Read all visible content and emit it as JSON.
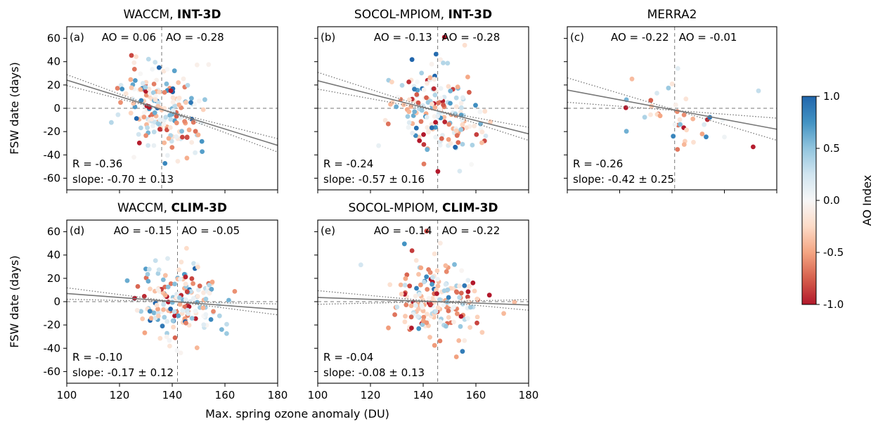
{
  "figure": {
    "shared_xlabel": "Max. spring ozone anomaly (DU)",
    "colorbar": {
      "label": "AO Index",
      "ticks": [
        "1.0",
        "0.5",
        "0.0",
        "-0.5",
        "-1.0"
      ],
      "tick_values": [
        1.0,
        0.5,
        0.0,
        -0.5,
        -1.0
      ],
      "colormap": [
        "#b2182b",
        "#d6604d",
        "#f4a582",
        "#fddbc7",
        "#f7f7f7",
        "#d1e5f0",
        "#92c5de",
        "#4393c3",
        "#2166ac"
      ],
      "cmap_note": "diverging red-white-blue",
      "range": [
        -1.0,
        1.0
      ]
    }
  },
  "chart_data": [
    {
      "type": "scatter",
      "panel": "(a)",
      "title_parts": [
        "WACCM, ",
        "INT-3D"
      ],
      "ylabel": "FSW date (days)",
      "xlim": [
        100,
        180
      ],
      "ylim": [
        -70,
        70
      ],
      "xticks": [
        "100",
        "120",
        "140",
        "160",
        "180"
      ],
      "yticks": [
        "60",
        "40",
        "20",
        "0",
        "-20",
        "-40",
        "-60"
      ],
      "x_tick_labels_shown": false,
      "ao_left": "AO = 0.06",
      "ao_right": "AO = -0.28",
      "r_text": "R = -0.36",
      "slope_text": "slope: -0.70 ± 0.13",
      "threshold_x": 136,
      "center": [
        136,
        -1
      ],
      "slope": -0.7,
      "ci": 0.13,
      "sd": [
        7.5,
        17
      ],
      "n": 180,
      "seed": 11,
      "ao_mean": -0.12
    },
    {
      "type": "scatter",
      "panel": "(b)",
      "title_parts": [
        "SOCOL-MPIOM, ",
        "INT-3D"
      ],
      "ylabel": "",
      "xlim": [
        100,
        180
      ],
      "ylim": [
        -70,
        70
      ],
      "xticks": [
        "100",
        "120",
        "140",
        "160",
        "180"
      ],
      "yticks": [
        "60",
        "40",
        "20",
        "0",
        "-20",
        "-40",
        "-60"
      ],
      "x_tick_labels_shown": false,
      "ao_left": "AO = -0.13",
      "ao_right": "AO = -0.28",
      "r_text": "R = -0.24",
      "slope_text": "slope: -0.57 ± 0.16",
      "threshold_x": 145.5,
      "center": [
        145,
        -2
      ],
      "slope": -0.57,
      "ci": 0.16,
      "sd": [
        8.5,
        19
      ],
      "n": 180,
      "seed": 23,
      "ao_mean": -0.18
    },
    {
      "type": "scatter",
      "panel": "(c)",
      "title_parts": [
        "MERRA2",
        ""
      ],
      "ylabel": "",
      "xlim": [
        100,
        180
      ],
      "ylim": [
        -70,
        70
      ],
      "xticks": [
        "100",
        "120",
        "140",
        "160",
        "180"
      ],
      "yticks": [
        "60",
        "40",
        "20",
        "0",
        "-20",
        "-40",
        "-60"
      ],
      "x_tick_labels_shown": false,
      "ao_left": "AO = -0.22",
      "ao_right": "AO = -0.01",
      "r_text": "R = -0.26",
      "slope_text": "slope: -0.42 ± 0.25",
      "threshold_x": 141,
      "center": [
        142,
        -2
      ],
      "slope": -0.42,
      "ci": 0.25,
      "sd": [
        10,
        16
      ],
      "n": 40,
      "seed": 37,
      "ao_mean": -0.1
    },
    {
      "type": "scatter",
      "panel": "(d)",
      "title_parts": [
        "WACCM, ",
        "CLIM-3D"
      ],
      "ylabel": "FSW date (days)",
      "xlim": [
        100,
        180
      ],
      "ylim": [
        -70,
        70
      ],
      "xticks": [
        "100",
        "120",
        "140",
        "160",
        "180"
      ],
      "yticks": [
        "60",
        "40",
        "20",
        "0",
        "-20",
        "-40",
        "-60"
      ],
      "x_tick_labels_shown": true,
      "ao_left": "AO = -0.15",
      "ao_right": "AO = -0.05",
      "r_text": "R = -0.10",
      "slope_text": "slope: -0.17 ± 0.12",
      "threshold_x": 142,
      "center": [
        141,
        0
      ],
      "slope": -0.17,
      "ci": 0.12,
      "sd": [
        8,
        16
      ],
      "n": 180,
      "seed": 51,
      "ao_mean": -0.1
    },
    {
      "type": "scatter",
      "panel": "(e)",
      "title_parts": [
        "SOCOL-MPIOM, ",
        "CLIM-3D"
      ],
      "ylabel": "",
      "xlim": [
        100,
        180
      ],
      "ylim": [
        -70,
        70
      ],
      "xticks": [
        "100",
        "120",
        "140",
        "160",
        "180"
      ],
      "yticks": [
        "60",
        "40",
        "20",
        "0",
        "-20",
        "-40",
        "-60"
      ],
      "x_tick_labels_shown": true,
      "ao_left": "AO = -0.14",
      "ao_right": "AO = -0.22",
      "r_text": "R = -0.04",
      "slope_text": "slope: -0.08 ± 0.13",
      "threshold_x": 145.5,
      "center": [
        145,
        0
      ],
      "slope": -0.08,
      "ci": 0.13,
      "sd": [
        8.5,
        17
      ],
      "n": 190,
      "seed": 77,
      "ao_mean": -0.18
    }
  ]
}
